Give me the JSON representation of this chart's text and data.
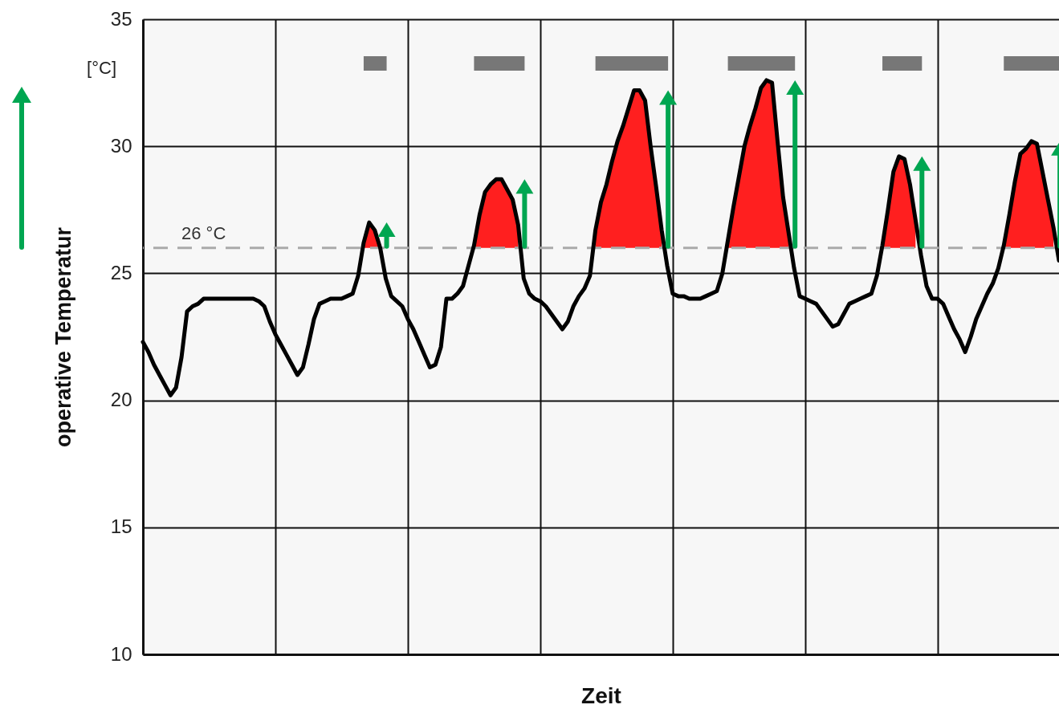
{
  "chart_data": {
    "type": "line",
    "xlabel": "Zeit",
    "ylabel": "operative Temperatur",
    "annotations": [
      "[°C]"
    ],
    "categories": [
      null,
      null,
      null,
      null,
      null,
      null,
      null,
      null,
      null,
      null,
      null,
      null,
      null,
      null,
      null,
      null,
      null,
      null,
      null,
      null,
      null,
      null,
      null,
      null,
      null,
      null,
      null,
      null,
      null,
      null,
      null,
      null,
      null,
      null,
      null,
      null,
      null,
      null,
      null,
      null,
      null,
      null,
      null,
      null,
      null,
      null,
      null,
      null,
      null,
      null,
      null,
      null,
      null,
      null,
      null,
      null,
      null,
      null,
      null,
      null,
      null,
      null,
      null,
      null,
      null,
      null,
      null,
      null,
      null,
      null,
      null,
      null,
      null,
      null,
      null,
      null,
      null,
      null,
      null,
      null,
      null,
      null,
      null,
      null,
      null,
      null,
      null,
      null,
      null,
      null,
      null,
      null,
      null,
      null,
      null,
      null,
      null,
      null,
      null,
      null,
      null,
      null,
      null,
      null,
      null,
      null,
      null,
      null,
      null,
      null,
      null,
      null,
      null,
      null,
      null,
      null,
      null,
      null,
      null,
      null,
      null,
      null,
      null,
      null,
      null,
      null,
      null,
      null,
      null,
      null,
      null,
      null,
      null,
      null,
      null,
      null,
      null,
      null,
      null,
      null,
      null,
      null,
      null,
      null,
      null,
      null,
      null,
      null,
      null,
      null,
      null,
      null,
      null,
      null,
      null,
      null,
      null,
      null,
      null,
      null,
      null,
      null,
      null,
      null,
      null,
      null,
      null
    ],
    "ylim": [
      10,
      35
    ],
    "yticks": [
      10,
      15,
      20,
      25,
      30,
      35
    ],
    "grid": true,
    "tick_labels": "y",
    "ref_lines": [
      {
        "axis": "y",
        "value": 26,
        "label": "26 °C",
        "color": "#aaaaaa",
        "line_style": "dashed"
      }
    ],
    "series": [
      {
        "type": "area",
        "color": "#ff1f1f",
        "values": [
          null,
          null,
          null,
          null,
          null,
          null,
          null,
          null,
          null,
          null,
          null,
          null,
          null,
          null,
          null,
          null,
          null,
          null,
          null,
          null,
          null,
          null,
          null,
          null,
          null,
          null,
          null,
          null,
          null,
          null,
          null,
          null,
          null,
          null,
          null,
          null,
          null,
          null,
          null,
          null,
          26.2,
          27.0,
          26.7,
          26.0,
          null,
          null,
          null,
          null,
          null,
          null,
          null,
          null,
          null,
          null,
          null,
          null,
          null,
          null,
          null,
          null,
          26.1,
          27.3,
          28.2,
          28.5,
          28.7,
          28.7,
          28.3,
          27.9,
          26.9,
          null,
          null,
          null,
          null,
          null,
          null,
          null,
          null,
          null,
          null,
          null,
          null,
          null,
          26.7,
          27.8,
          28.5,
          29.4,
          30.2,
          30.8,
          31.5,
          32.2,
          32.2,
          31.8,
          30.0,
          28.4,
          26.7,
          null,
          null,
          null,
          null,
          null,
          null,
          null,
          null,
          null,
          null,
          null,
          26.3,
          27.6,
          28.8,
          30.0,
          30.8,
          31.5,
          32.3,
          32.6,
          32.5,
          30.2,
          28.0,
          26.6,
          null,
          null,
          null,
          null,
          null,
          null,
          null,
          null,
          null,
          null,
          null,
          null,
          null,
          null,
          null,
          null,
          26.1,
          27.5,
          29.0,
          29.6,
          29.5,
          28.5,
          27.1,
          null,
          null,
          null,
          null,
          null,
          null,
          null,
          null,
          null,
          null,
          null,
          null,
          null,
          null,
          null,
          26.1,
          27.3,
          28.6,
          29.7,
          29.9,
          30.2,
          30.1,
          29.0,
          27.9,
          26.8,
          null
        ]
      },
      {
        "color": "#000000",
        "values": [
          22.3,
          21.9,
          21.4,
          21.0,
          20.6,
          20.2,
          20.5,
          21.7,
          23.5,
          23.7,
          23.8,
          24.0,
          24.0,
          24.0,
          24.0,
          24.0,
          24.0,
          24.0,
          24.0,
          24.0,
          24.0,
          23.9,
          23.7,
          23.1,
          22.6,
          22.2,
          21.8,
          21.4,
          21.0,
          21.3,
          22.2,
          23.2,
          23.8,
          23.9,
          24.0,
          24.0,
          24.0,
          24.1,
          24.2,
          24.9,
          26.2,
          27.0,
          26.7,
          26.0,
          24.8,
          24.1,
          23.9,
          23.7,
          23.2,
          22.8,
          22.3,
          21.8,
          21.3,
          21.4,
          22.1,
          24.0,
          24.0,
          24.2,
          24.5,
          25.3,
          26.1,
          27.3,
          28.2,
          28.5,
          28.7,
          28.7,
          28.3,
          27.9,
          26.9,
          24.8,
          24.2,
          24.0,
          23.9,
          23.7,
          23.4,
          23.1,
          22.8,
          23.1,
          23.7,
          24.1,
          24.4,
          24.9,
          26.7,
          27.8,
          28.5,
          29.4,
          30.2,
          30.8,
          31.5,
          32.2,
          32.2,
          31.8,
          30.0,
          28.4,
          26.7,
          25.3,
          24.2,
          24.1,
          24.1,
          24.0,
          24.0,
          24.0,
          24.1,
          24.2,
          24.3,
          25.0,
          26.3,
          27.6,
          28.8,
          30.0,
          30.8,
          31.5,
          32.3,
          32.6,
          32.5,
          30.2,
          28.0,
          26.6,
          25.2,
          24.1,
          24.0,
          23.9,
          23.8,
          23.5,
          23.2,
          22.9,
          23.0,
          23.4,
          23.8,
          23.9,
          24.0,
          24.1,
          24.2,
          24.9,
          26.1,
          27.5,
          29.0,
          29.6,
          29.5,
          28.5,
          27.1,
          25.7,
          24.5,
          24.0,
          24.0,
          23.8,
          23.3,
          22.8,
          22.4,
          21.9,
          22.5,
          23.2,
          23.7,
          24.2,
          24.6,
          25.2,
          26.1,
          27.3,
          28.6,
          29.7,
          29.9,
          30.2,
          30.1,
          29.0,
          27.9,
          26.8,
          25.5
        ]
      }
    ]
  }
}
